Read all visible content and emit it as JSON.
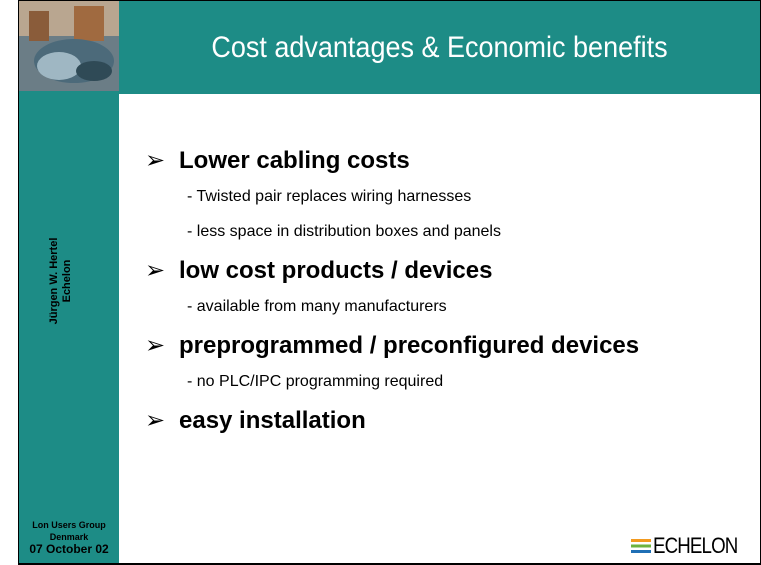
{
  "header": {
    "title": "Cost advantages & Economic benefits"
  },
  "sidebar": {
    "author": "Jürgen W. Hertel",
    "company": "Echelon",
    "event": "Lon Users Group",
    "country": "Denmark",
    "date": "07 October 02"
  },
  "bullets": [
    {
      "text": "Lower cabling costs",
      "items": [
        "- Twisted pair replaces wiring harnesses",
        "- less space in distribution boxes and panels"
      ]
    },
    {
      "text": "low cost products / devices",
      "items": [
        "- available from many manufacturers"
      ]
    },
    {
      "text": "preprogrammed / preconfigured devices",
      "items": [
        "- no PLC/IPC programming required"
      ]
    },
    {
      "text": "easy installation",
      "items": []
    }
  ],
  "logo": {
    "text": "ECHELON"
  }
}
